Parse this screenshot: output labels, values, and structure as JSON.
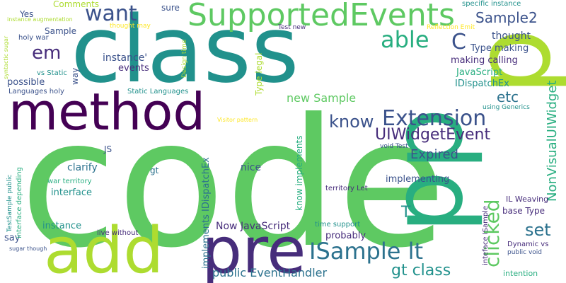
{
  "word_cloud": {
    "background": "#ffffff",
    "palette": [
      "#440154",
      "#472d7b",
      "#3b528b",
      "#2c728e",
      "#21918c",
      "#28ae80",
      "#5ec962",
      "#addc30",
      "#fde725"
    ],
    "words": [
      {
        "text": "code",
        "color": "#5ec962"
      },
      {
        "text": "class",
        "color": "#21918c"
      },
      {
        "text": "pp",
        "color": "#28ae80"
      },
      {
        "text": "method",
        "color": "#440154"
      },
      {
        "text": "add",
        "color": "#addc30"
      },
      {
        "text": "pre",
        "color": "#472d7b"
      },
      {
        "text": "p",
        "color": "#addc30"
      },
      {
        "text": "SupportedEvents",
        "color": "#5ec962"
      },
      {
        "text": "ISample lt",
        "color": "#2c728e"
      },
      {
        "text": "Extension",
        "color": "#3b528b"
      },
      {
        "text": "want",
        "color": "#3b528b"
      },
      {
        "text": "able",
        "color": "#28ae80"
      },
      {
        "text": "clicked",
        "color": "#5ec962"
      },
      {
        "text": "know",
        "color": "#3b528b"
      },
      {
        "text": "UIWidgetEvent",
        "color": "#472d7b"
      },
      {
        "text": "em",
        "color": "#472d7b"
      },
      {
        "text": "C",
        "color": "#3b528b"
      },
      {
        "text": "set",
        "color": "#2c728e"
      },
      {
        "text": "gt class",
        "color": "#21918c"
      },
      {
        "text": "Sample2",
        "color": "#3b528b"
      },
      {
        "text": "Expired",
        "color": "#3b528b"
      },
      {
        "text": "etc",
        "color": "#2c728e"
      },
      {
        "text": "T",
        "color": "#21918c"
      },
      {
        "text": "NonVisualUIWidget",
        "color": "#28ae80"
      },
      {
        "text": "public EventHandler",
        "color": "#2c728e"
      },
      {
        "text": "new Sample",
        "color": "#5ec962"
      },
      {
        "text": "Now JavaScript",
        "color": "#472d7b"
      },
      {
        "text": "thought",
        "color": "#3b528b"
      },
      {
        "text": "Type making",
        "color": "#3b528b"
      },
      {
        "text": "making calling",
        "color": "#472d7b"
      },
      {
        "text": "JavaScript",
        "color": "#28ae80"
      },
      {
        "text": "IDispatchEx",
        "color": "#21918c"
      },
      {
        "text": "instance'",
        "color": "#3b528b"
      },
      {
        "text": "events",
        "color": "#472d7b"
      },
      {
        "text": "possible",
        "color": "#3b528b"
      },
      {
        "text": "clarify",
        "color": "#2c728e"
      },
      {
        "text": "interface",
        "color": "#21918c"
      },
      {
        "text": "implementing",
        "color": "#3b528b"
      },
      {
        "text": "nice",
        "color": "#3b528b"
      },
      {
        "text": "instance",
        "color": "#21918c"
      },
      {
        "text": "probably",
        "color": "#472d7b"
      },
      {
        "text": "say",
        "color": "#3b528b"
      },
      {
        "text": "way",
        "color": "#3b528b"
      },
      {
        "text": "JS",
        "color": "#3b528b"
      },
      {
        "text": "gt",
        "color": "#2c728e"
      },
      {
        "text": "implements IDispatchEx",
        "color": "#2c728e"
      },
      {
        "text": "know implements",
        "color": "#28ae80"
      },
      {
        "text": "Type legal",
        "color": "#addc30"
      },
      {
        "text": "Comments",
        "color": "#addc30"
      },
      {
        "text": "sure",
        "color": "#3b528b"
      },
      {
        "text": "Yes",
        "color": "#3b528b"
      },
      {
        "text": "Sample",
        "color": "#3b528b"
      },
      {
        "text": "holy war",
        "color": "#3b528b"
      },
      {
        "text": "Languages holy",
        "color": "#3b528b"
      },
      {
        "text": "vs Static",
        "color": "#21918c"
      },
      {
        "text": "Static Languages",
        "color": "#21918c"
      },
      {
        "text": "Design time",
        "color": "#addc30"
      },
      {
        "text": "thought may",
        "color": "#fde725"
      },
      {
        "text": "Test new",
        "color": "#472d7b"
      },
      {
        "text": "Reflection Emit",
        "color": "#fde725"
      },
      {
        "text": "specific instance",
        "color": "#21918c"
      },
      {
        "text": "instance augmentation",
        "color": "#addc30"
      },
      {
        "text": "syntactic sugar",
        "color": "#addc30"
      },
      {
        "text": "Visitor pattern",
        "color": "#fde725"
      },
      {
        "text": "using Generics",
        "color": "#21918c"
      },
      {
        "text": "void Test",
        "color": "#3b528b"
      },
      {
        "text": "IL Weaving",
        "color": "#472d7b"
      },
      {
        "text": "base Type",
        "color": "#472d7b"
      },
      {
        "text": "inteface ISample",
        "color": "#472d7b"
      },
      {
        "text": "Dynamic vs",
        "color": "#472d7b"
      },
      {
        "text": "public void",
        "color": "#3b528b"
      },
      {
        "text": "intention",
        "color": "#28ae80"
      },
      {
        "text": "territory Let",
        "color": "#472d7b"
      },
      {
        "text": "time support",
        "color": "#21918c"
      },
      {
        "text": "live without",
        "color": "#472d7b"
      },
      {
        "text": "war territory",
        "color": "#28ae80"
      },
      {
        "text": "interface depending",
        "color": "#28ae80"
      },
      {
        "text": "TestSample public",
        "color": "#21918c"
      },
      {
        "text": "sugar though",
        "color": "#3b528b"
      }
    ]
  }
}
